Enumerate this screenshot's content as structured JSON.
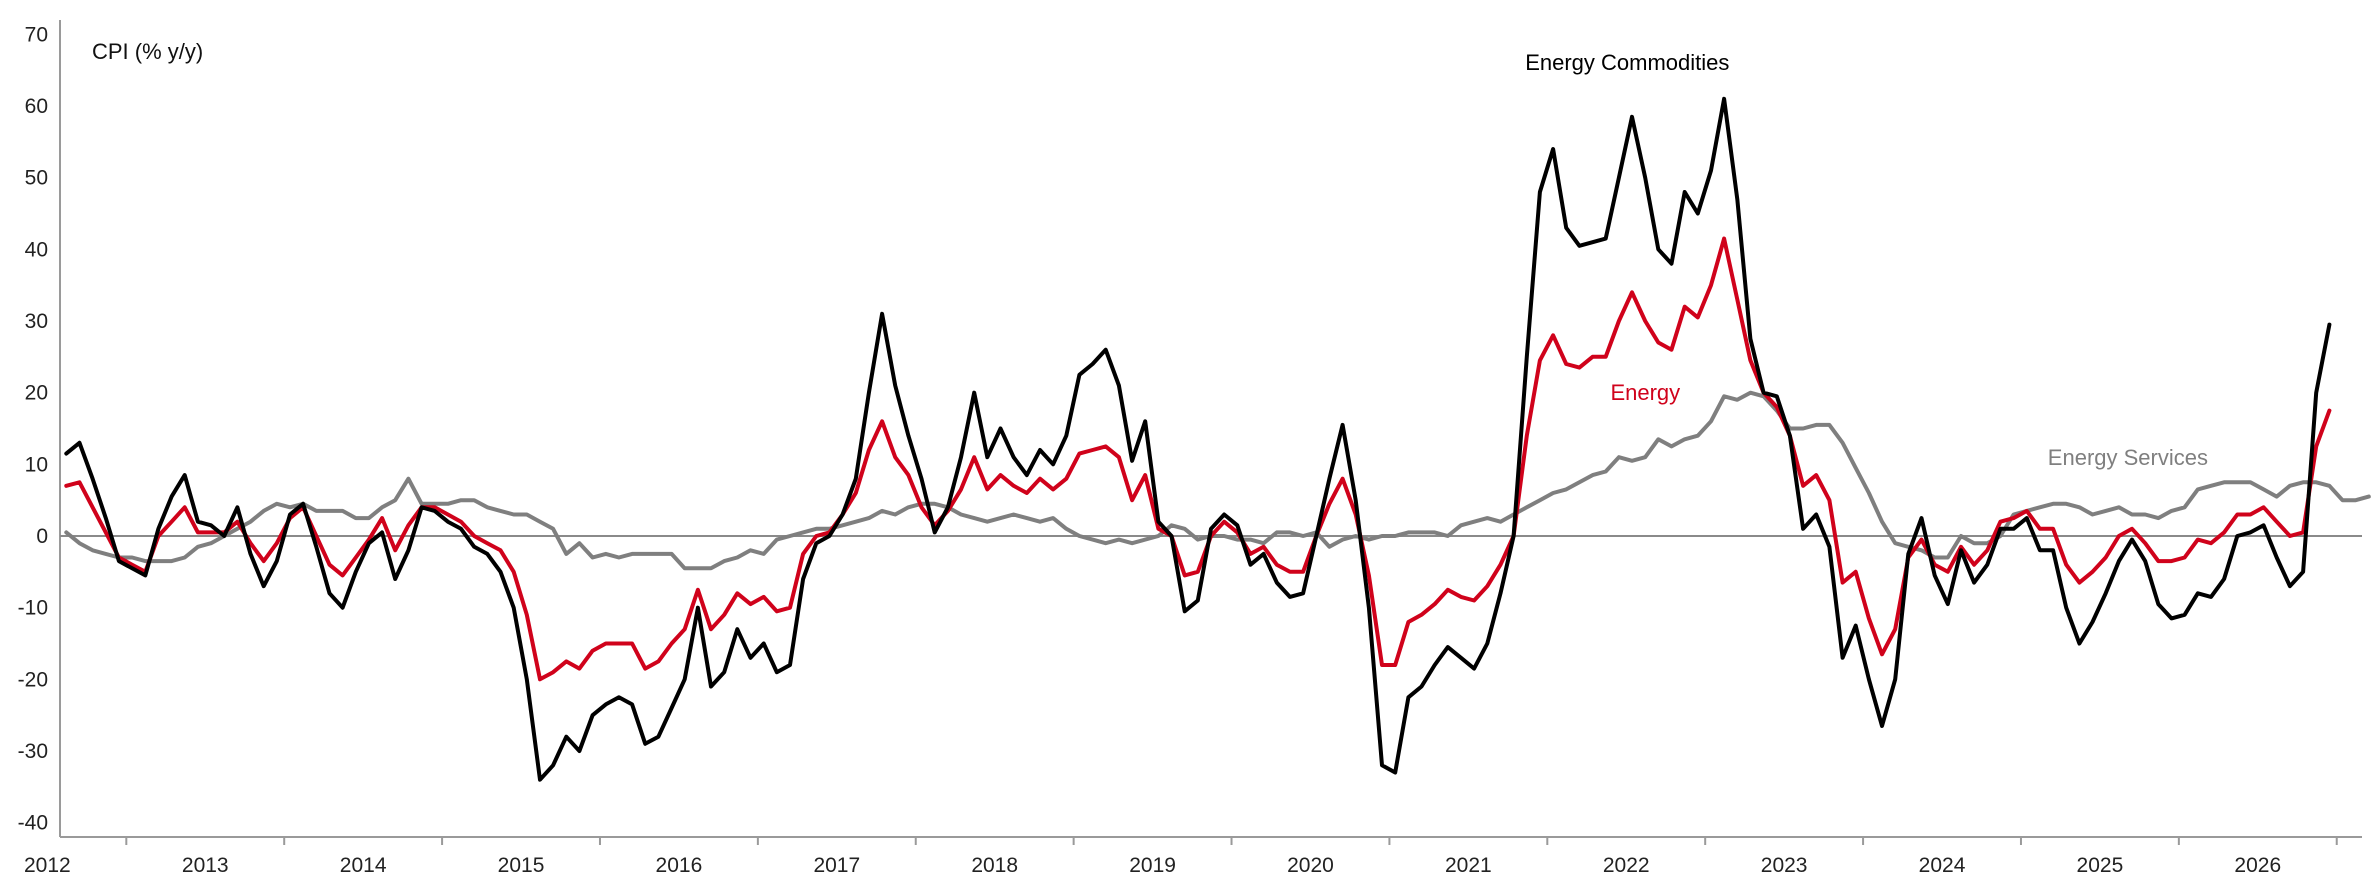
{
  "chart_data": {
    "type": "line",
    "ylabel": "CPI (% y/y)",
    "ylim": [
      -42,
      72
    ],
    "xlim": [
      2011.58,
      2026.16
    ],
    "y_ticks": [
      "70",
      "60",
      "50",
      "40",
      "30",
      "20",
      "10",
      "0",
      "-10",
      "-20",
      "-30",
      "-40"
    ],
    "x_ticks": [
      "2012",
      "2013",
      "2014",
      "2015",
      "2016",
      "2017",
      "2018",
      "2019",
      "2020",
      "2021",
      "2022",
      "2023",
      "2024",
      "2025",
      "2026"
    ],
    "grid": false,
    "zero_line": true,
    "legend": "inline-labels",
    "x_start": 2011.62,
    "x_step_months": 1,
    "series": [
      {
        "name": "Energy Commodities",
        "color": "#000000",
        "label_at": [
          2020.86,
          65
        ],
        "values": [
          11.5,
          13,
          8,
          2.5,
          -3.5,
          -4.5,
          -5.5,
          1,
          5.5,
          8.5,
          2,
          1.5,
          0,
          4,
          -2.5,
          -7,
          -3.5,
          3,
          4.5,
          -1.5,
          -8,
          -10,
          -5,
          -1,
          0.5,
          -6,
          -2,
          4,
          3.5,
          2,
          1,
          -1.5,
          -2.5,
          -5,
          -10,
          -20,
          -34,
          -32,
          -28,
          -30,
          -25,
          -23.5,
          -22.5,
          -23.5,
          -29,
          -28,
          -24,
          -20,
          -10,
          -21,
          -19,
          -13,
          -17,
          -15,
          -19,
          -18,
          -6,
          -1,
          0,
          3,
          8,
          20,
          31,
          21,
          14,
          8,
          0.5,
          4,
          11,
          20,
          11,
          15,
          11,
          8.5,
          12,
          10,
          14,
          22.5,
          24,
          26,
          21,
          10.5,
          16,
          2,
          0,
          -10.5,
          -9,
          1,
          3,
          1.5,
          -4,
          -2.5,
          -6.5,
          -8.5,
          -8,
          0,
          8,
          15.5,
          5,
          -10,
          -32,
          -33,
          -22.5,
          -21,
          -18,
          -15.5,
          -17,
          -18.5,
          -15,
          -8,
          0,
          25,
          48,
          54,
          43,
          40.5,
          41,
          41.5,
          50,
          58.5,
          50,
          40,
          38,
          48,
          45,
          51,
          61,
          47,
          27.5,
          20,
          19.5,
          14,
          1,
          3,
          -1.5,
          -17,
          -12.5,
          -20,
          -26.5,
          -20,
          -2.5,
          2.5,
          -5.5,
          -9.5,
          -2,
          -6.5,
          -4,
          1,
          1,
          2.5,
          -2,
          -2,
          -10,
          -15,
          -12,
          -8,
          -3.5,
          -0.5,
          -3.5,
          -9.5,
          -11.5,
          -11,
          -8,
          -8.5,
          -6,
          0,
          0.5,
          1.5,
          -3,
          -7,
          -5,
          20,
          29.5
        ]
      },
      {
        "name": "Energy",
        "color": "#d0021b",
        "label_at": [
          2021.4,
          19
        ],
        "values": [
          7,
          7.5,
          4,
          0.5,
          -3,
          -4,
          -5,
          0,
          2,
          4,
          0.5,
          0.5,
          0.5,
          2,
          -1,
          -3.5,
          -1,
          2.5,
          4,
          0,
          -4,
          -5.5,
          -3,
          -0.5,
          2.5,
          -2,
          1.5,
          4,
          4,
          3,
          2,
          0,
          -1,
          -2,
          -5,
          -11,
          -20,
          -19,
          -17.5,
          -18.5,
          -16,
          -15,
          -15,
          -15,
          -18.5,
          -17.5,
          -15,
          -13,
          -7.5,
          -13,
          -11,
          -8,
          -9.5,
          -8.5,
          -10.5,
          -10,
          -2.5,
          0,
          0.5,
          3,
          6,
          12,
          16,
          11,
          8.5,
          4,
          1.5,
          3.5,
          6.5,
          11,
          6.5,
          8.5,
          7,
          6,
          8,
          6.5,
          8,
          11.5,
          12,
          12.5,
          11,
          5,
          8.5,
          1,
          0,
          -5.5,
          -5,
          0,
          2,
          0.5,
          -2.5,
          -1.5,
          -4,
          -5,
          -5,
          0,
          4.5,
          8,
          3,
          -5.5,
          -18,
          -18,
          -12,
          -11,
          -9.5,
          -7.5,
          -8.5,
          -9,
          -7,
          -4,
          0,
          14,
          24.5,
          28,
          24,
          23.5,
          25,
          25,
          30,
          34,
          30,
          27,
          26,
          32,
          30.5,
          35,
          41.5,
          33,
          24.5,
          20,
          18,
          14,
          7,
          8.5,
          5,
          -6.5,
          -5,
          -11.5,
          -16.5,
          -13,
          -3,
          -0.5,
          -4,
          -5,
          -1.5,
          -4,
          -2,
          2,
          2.5,
          3.5,
          1,
          1,
          -4,
          -6.5,
          -5,
          -3,
          0,
          1,
          -1,
          -3.5,
          -3.5,
          -3,
          -0.5,
          -1,
          0.5,
          3,
          3,
          4,
          2,
          0,
          0.5,
          12.5,
          17.5
        ]
      },
      {
        "name": "Energy Services",
        "color": "#7f7f7f",
        "label_at": [
          2024.17,
          9.9
        ],
        "values": [
          0.5,
          -1,
          -2,
          -2.5,
          -3,
          -3,
          -3.5,
          -3.5,
          -3.5,
          -3,
          -1.5,
          -1,
          0,
          1,
          2,
          3.5,
          4.5,
          4,
          4.5,
          3.5,
          3.5,
          3.5,
          2.5,
          2.5,
          4,
          5,
          8,
          4.5,
          4.5,
          4.5,
          5,
          5,
          4,
          3.5,
          3,
          3,
          2,
          1,
          -2.5,
          -1,
          -3,
          -2.5,
          -3,
          -2.5,
          -2.5,
          -2.5,
          -2.5,
          -4.5,
          -4.5,
          -4.5,
          -3.5,
          -3,
          -2,
          -2.5,
          -0.5,
          0,
          0.5,
          1,
          1,
          1.5,
          2,
          2.5,
          3.5,
          3,
          4,
          4.5,
          4.5,
          4,
          3,
          2.5,
          2,
          2.5,
          3,
          2.5,
          2,
          2.5,
          1,
          0,
          -0.5,
          -1,
          -0.5,
          -1,
          -0.5,
          0,
          1.5,
          1,
          -0.5,
          0,
          0,
          -0.5,
          -0.5,
          -1,
          0.5,
          0.5,
          0,
          0.5,
          -1.5,
          -0.5,
          0,
          -0.5,
          0,
          0,
          0.5,
          0.5,
          0.5,
          0,
          1.5,
          2,
          2.5,
          2,
          3,
          4,
          5,
          6,
          6.5,
          7.5,
          8.5,
          9,
          11,
          10.5,
          11,
          13.5,
          12.5,
          13.5,
          14,
          16,
          19.5,
          19,
          20,
          19.5,
          17.5,
          15,
          15,
          15.5,
          15.5,
          13,
          9.5,
          6,
          2,
          -1,
          -1.5,
          -2,
          -3,
          -3,
          0,
          -1,
          -1,
          0,
          3,
          3.5,
          4,
          4.5,
          4.5,
          4,
          3,
          3.5,
          4,
          3,
          3,
          2.5,
          3.5,
          4,
          6.5,
          7,
          7.5,
          7.5,
          7.5,
          6.5,
          5.5,
          7,
          7.5,
          7.5,
          7,
          5,
          5,
          5.5
        ]
      }
    ]
  }
}
